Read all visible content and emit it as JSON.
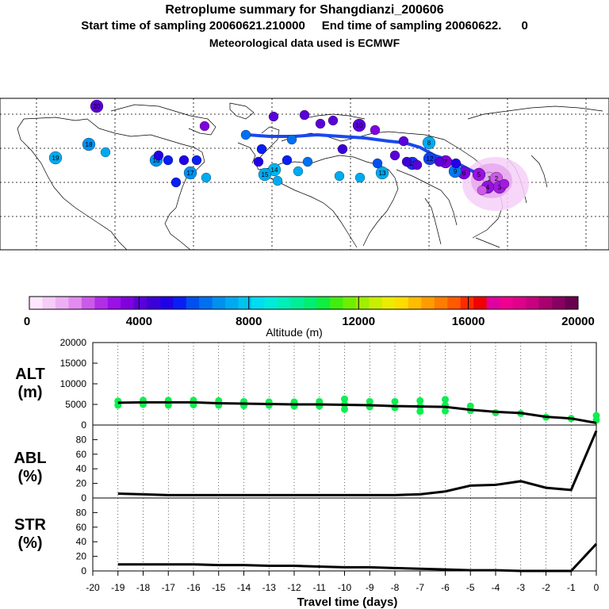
{
  "header": {
    "title": "Retroplume summary for Shangdianzi_200606",
    "sampling": "Start time of sampling 20060621.210000     End time of sampling 20060622.      0",
    "met": "Meteorological data used is ECMWF"
  },
  "colorbar": {
    "label": "Altitude (m)",
    "ticks": [
      "0",
      "4000",
      "8000",
      "12000",
      "16000",
      "20000"
    ],
    "colors": [
      "#ffe8ff",
      "#f6ccf8",
      "#eeb0f4",
      "#e28cf0",
      "#cc5ae8",
      "#b22ee6",
      "#9a10e6",
      "#8000e0",
      "#5a00d8",
      "#3c00d8",
      "#2200e8",
      "#0a1ef4",
      "#0050f0",
      "#0070f0",
      "#0090f0",
      "#00aaf0",
      "#00c4f0",
      "#00dcf0",
      "#00eadc",
      "#00eeb8",
      "#00ee96",
      "#00ee72",
      "#10ee40",
      "#40ee10",
      "#70ee00",
      "#a0ee00",
      "#c8ee00",
      "#ecec00",
      "#ffdc00",
      "#ffbc00",
      "#ff9c00",
      "#ff7c00",
      "#ff5a00",
      "#ff2a00",
      "#f00000",
      "#e000a0",
      "#f00090",
      "#e0008c",
      "#c80080",
      "#a8006e",
      "#880060",
      "#6a0050"
    ]
  },
  "map": {
    "trajectory": [
      {
        "label": "1",
        "color": "#e0b0f0"
      },
      {
        "label": "2",
        "color": "#cc5ae8"
      },
      {
        "label": "3",
        "color": "#a01ae0"
      },
      {
        "label": "4",
        "color": "#9010e0"
      },
      {
        "label": "5",
        "color": "#9a10e6"
      },
      {
        "label": "6",
        "color": "#8000e0"
      },
      {
        "label": "7",
        "color": "#7a00d8"
      },
      {
        "label": "8",
        "color": "#00aaf0"
      },
      {
        "label": "9",
        "color": "#0078f0"
      },
      {
        "label": "10",
        "color": "#5a00d8"
      },
      {
        "label": "11",
        "color": "#1a30e8"
      },
      {
        "label": "12",
        "color": "#1040f0"
      },
      {
        "label": "13",
        "color": "#00aaf0"
      },
      {
        "label": "14",
        "color": "#00b4f0"
      },
      {
        "label": "15",
        "color": "#00aaf0"
      },
      {
        "label": "16",
        "color": "#0090f0"
      },
      {
        "label": "17",
        "color": "#0090f0"
      },
      {
        "label": "18",
        "color": "#0090f0"
      },
      {
        "label": "19",
        "color": "#00aaf0"
      },
      {
        "label": "20",
        "color": "#5a00d8"
      }
    ]
  },
  "chart_data": [
    {
      "type": "scatter+line",
      "panel": "ALT",
      "ylabel": "ALT\n(m)",
      "ylim": [
        0,
        20000
      ],
      "yticks": [
        "20000",
        "15000",
        "10000",
        "5000",
        "0"
      ],
      "x": [
        -19,
        -18,
        -17,
        -16,
        -15,
        -14,
        -13,
        -12,
        -11,
        -10,
        -9,
        -8,
        -7,
        -6,
        -5,
        -4,
        -3,
        -2,
        -1,
        0
      ],
      "series": [
        {
          "name": "median",
          "values": [
            5400,
            5500,
            5500,
            5500,
            5300,
            5200,
            5100,
            5000,
            5000,
            4900,
            4800,
            4600,
            4500,
            4400,
            3700,
            3200,
            2900,
            2000,
            1600,
            500
          ]
        },
        {
          "name": "ensemble",
          "points": [
            [
              -19,
              4800
            ],
            [
              -19,
              5800
            ],
            [
              -18,
              5000
            ],
            [
              -18,
              6000
            ],
            [
              -17,
              4800
            ],
            [
              -17,
              6000
            ],
            [
              -16,
              4900
            ],
            [
              -16,
              6000
            ],
            [
              -15,
              4800
            ],
            [
              -15,
              5900
            ],
            [
              -14,
              4700
            ],
            [
              -14,
              5700
            ],
            [
              -13,
              4800
            ],
            [
              -13,
              5600
            ],
            [
              -12,
              4600
            ],
            [
              -12,
              5600
            ],
            [
              -11,
              4600
            ],
            [
              -11,
              5700
            ],
            [
              -10,
              3800
            ],
            [
              -10,
              5000
            ],
            [
              -10,
              6300
            ],
            [
              -9,
              4400
            ],
            [
              -9,
              5700
            ],
            [
              -8,
              4200
            ],
            [
              -8,
              5700
            ],
            [
              -7,
              3300
            ],
            [
              -7,
              4500
            ],
            [
              -7,
              5900
            ],
            [
              -6,
              3400
            ],
            [
              -6,
              4800
            ],
            [
              -6,
              6200
            ],
            [
              -5,
              3500
            ],
            [
              -5,
              4600
            ],
            [
              -4,
              3000
            ],
            [
              -3,
              2800
            ],
            [
              -2,
              1900
            ],
            [
              -1,
              1600
            ],
            [
              0,
              1200
            ],
            [
              0,
              2300
            ]
          ]
        }
      ]
    },
    {
      "type": "line",
      "panel": "ABL",
      "ylabel": "ABL\n(%)",
      "ylim": [
        0,
        100
      ],
      "yticks": [
        "80",
        "60",
        "40",
        "20",
        "0"
      ],
      "x": [
        -19,
        -18,
        -17,
        -16,
        -15,
        -14,
        -13,
        -12,
        -11,
        -10,
        -9,
        -8,
        -7,
        -6,
        -5,
        -4,
        -3,
        -2,
        -1,
        0
      ],
      "series": [
        {
          "name": "ABL",
          "values": [
            6,
            5,
            4,
            4,
            4,
            4,
            4,
            4,
            4,
            4,
            4,
            4,
            5,
            9,
            17,
            18,
            23,
            14,
            11,
            92
          ]
        }
      ]
    },
    {
      "type": "line",
      "panel": "STR",
      "ylabel": "STR\n(%)",
      "ylim": [
        0,
        100
      ],
      "yticks": [
        "80",
        "60",
        "40",
        "20",
        "0"
      ],
      "x": [
        -19,
        -18,
        -17,
        -16,
        -15,
        -14,
        -13,
        -12,
        -11,
        -10,
        -9,
        -8,
        -7,
        -6,
        -5,
        -4,
        -3,
        -2,
        -1,
        0
      ],
      "series": [
        {
          "name": "STR",
          "values": [
            9,
            9,
            9,
            9,
            8,
            8,
            7,
            7,
            6,
            5,
            5,
            4,
            3,
            2,
            1,
            1,
            0,
            0,
            0,
            37
          ]
        }
      ]
    }
  ],
  "xaxis": {
    "ticks": [
      "-20",
      "-19",
      "-18",
      "-17",
      "-16",
      "-15",
      "-14",
      "-13",
      "-12",
      "-11",
      "-10",
      "-9",
      "-8",
      "-7",
      "-6",
      "-5",
      "-4",
      "-3",
      "-2",
      "-1",
      "0"
    ],
    "label": "Travel time (days)"
  }
}
